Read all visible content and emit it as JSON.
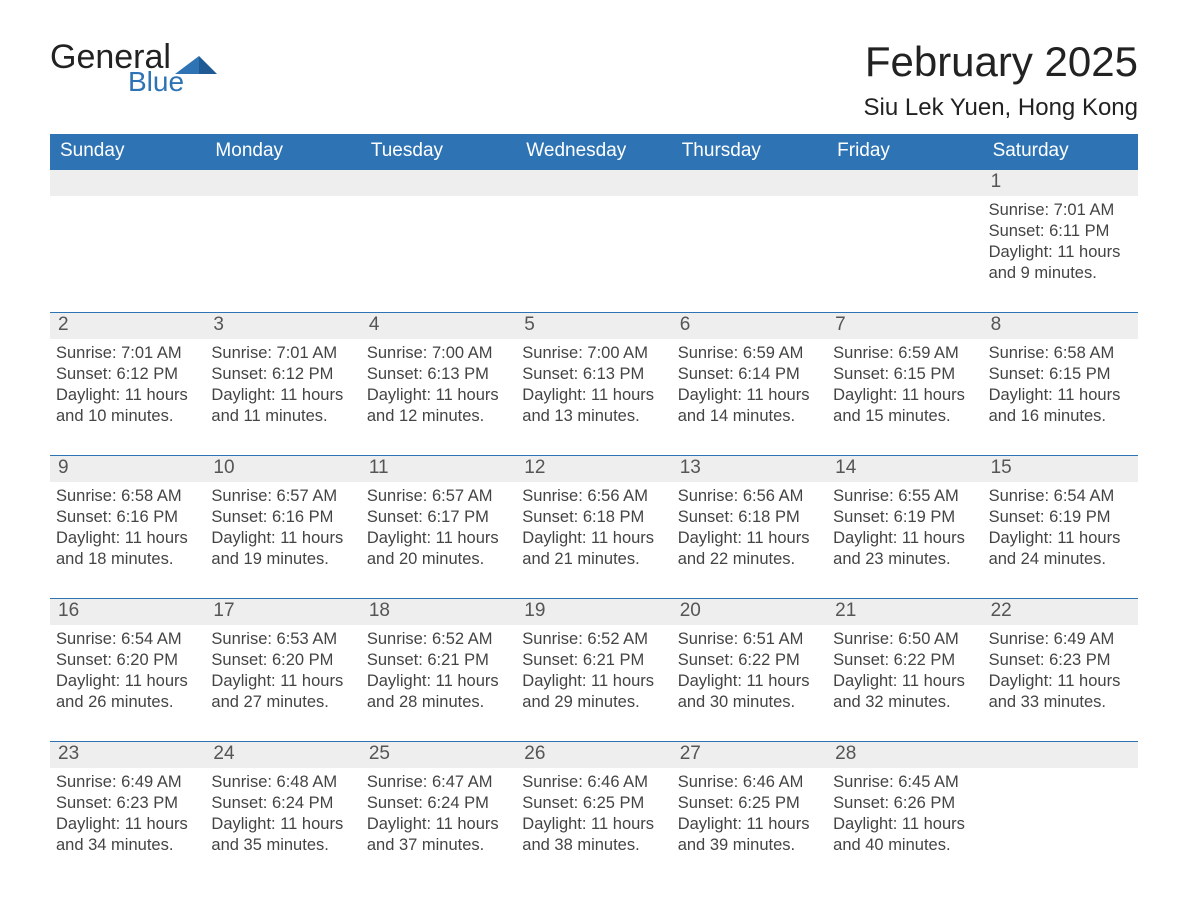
{
  "brand": {
    "word1": "General",
    "word2": "Blue",
    "accent_color": "#2e74b5"
  },
  "title": "February 2025",
  "location": "Siu Lek Yuen, Hong Kong",
  "colors": {
    "header_bg": "#2e74b5",
    "row_separator": "#2e74b5",
    "daynum_bg": "#eeeeee",
    "text": "#333333",
    "background": "#ffffff"
  },
  "typography": {
    "title_fontsize_pt": 32,
    "location_fontsize_pt": 18,
    "weekday_fontsize_pt": 14,
    "body_fontsize_pt": 12,
    "font_family": "Segoe UI / Arial"
  },
  "calendar": {
    "type": "table",
    "columns": [
      "Sunday",
      "Monday",
      "Tuesday",
      "Wednesday",
      "Thursday",
      "Friday",
      "Saturday"
    ],
    "weeks": [
      [
        null,
        null,
        null,
        null,
        null,
        null,
        {
          "n": "1",
          "sunrise": "7:01 AM",
          "sunset": "6:11 PM",
          "daylight": "11 hours and 9 minutes."
        }
      ],
      [
        {
          "n": "2",
          "sunrise": "7:01 AM",
          "sunset": "6:12 PM",
          "daylight": "11 hours and 10 minutes."
        },
        {
          "n": "3",
          "sunrise": "7:01 AM",
          "sunset": "6:12 PM",
          "daylight": "11 hours and 11 minutes."
        },
        {
          "n": "4",
          "sunrise": "7:00 AM",
          "sunset": "6:13 PM",
          "daylight": "11 hours and 12 minutes."
        },
        {
          "n": "5",
          "sunrise": "7:00 AM",
          "sunset": "6:13 PM",
          "daylight": "11 hours and 13 minutes."
        },
        {
          "n": "6",
          "sunrise": "6:59 AM",
          "sunset": "6:14 PM",
          "daylight": "11 hours and 14 minutes."
        },
        {
          "n": "7",
          "sunrise": "6:59 AM",
          "sunset": "6:15 PM",
          "daylight": "11 hours and 15 minutes."
        },
        {
          "n": "8",
          "sunrise": "6:58 AM",
          "sunset": "6:15 PM",
          "daylight": "11 hours and 16 minutes."
        }
      ],
      [
        {
          "n": "9",
          "sunrise": "6:58 AM",
          "sunset": "6:16 PM",
          "daylight": "11 hours and 18 minutes."
        },
        {
          "n": "10",
          "sunrise": "6:57 AM",
          "sunset": "6:16 PM",
          "daylight": "11 hours and 19 minutes."
        },
        {
          "n": "11",
          "sunrise": "6:57 AM",
          "sunset": "6:17 PM",
          "daylight": "11 hours and 20 minutes."
        },
        {
          "n": "12",
          "sunrise": "6:56 AM",
          "sunset": "6:18 PM",
          "daylight": "11 hours and 21 minutes."
        },
        {
          "n": "13",
          "sunrise": "6:56 AM",
          "sunset": "6:18 PM",
          "daylight": "11 hours and 22 minutes."
        },
        {
          "n": "14",
          "sunrise": "6:55 AM",
          "sunset": "6:19 PM",
          "daylight": "11 hours and 23 minutes."
        },
        {
          "n": "15",
          "sunrise": "6:54 AM",
          "sunset": "6:19 PM",
          "daylight": "11 hours and 24 minutes."
        }
      ],
      [
        {
          "n": "16",
          "sunrise": "6:54 AM",
          "sunset": "6:20 PM",
          "daylight": "11 hours and 26 minutes."
        },
        {
          "n": "17",
          "sunrise": "6:53 AM",
          "sunset": "6:20 PM",
          "daylight": "11 hours and 27 minutes."
        },
        {
          "n": "18",
          "sunrise": "6:52 AM",
          "sunset": "6:21 PM",
          "daylight": "11 hours and 28 minutes."
        },
        {
          "n": "19",
          "sunrise": "6:52 AM",
          "sunset": "6:21 PM",
          "daylight": "11 hours and 29 minutes."
        },
        {
          "n": "20",
          "sunrise": "6:51 AM",
          "sunset": "6:22 PM",
          "daylight": "11 hours and 30 minutes."
        },
        {
          "n": "21",
          "sunrise": "6:50 AM",
          "sunset": "6:22 PM",
          "daylight": "11 hours and 32 minutes."
        },
        {
          "n": "22",
          "sunrise": "6:49 AM",
          "sunset": "6:23 PM",
          "daylight": "11 hours and 33 minutes."
        }
      ],
      [
        {
          "n": "23",
          "sunrise": "6:49 AM",
          "sunset": "6:23 PM",
          "daylight": "11 hours and 34 minutes."
        },
        {
          "n": "24",
          "sunrise": "6:48 AM",
          "sunset": "6:24 PM",
          "daylight": "11 hours and 35 minutes."
        },
        {
          "n": "25",
          "sunrise": "6:47 AM",
          "sunset": "6:24 PM",
          "daylight": "11 hours and 37 minutes."
        },
        {
          "n": "26",
          "sunrise": "6:46 AM",
          "sunset": "6:25 PM",
          "daylight": "11 hours and 38 minutes."
        },
        {
          "n": "27",
          "sunrise": "6:46 AM",
          "sunset": "6:25 PM",
          "daylight": "11 hours and 39 minutes."
        },
        {
          "n": "28",
          "sunrise": "6:45 AM",
          "sunset": "6:26 PM",
          "daylight": "11 hours and 40 minutes."
        },
        null
      ]
    ],
    "labels": {
      "sunrise_prefix": "Sunrise: ",
      "sunset_prefix": "Sunset: ",
      "daylight_prefix": "Daylight: "
    }
  }
}
